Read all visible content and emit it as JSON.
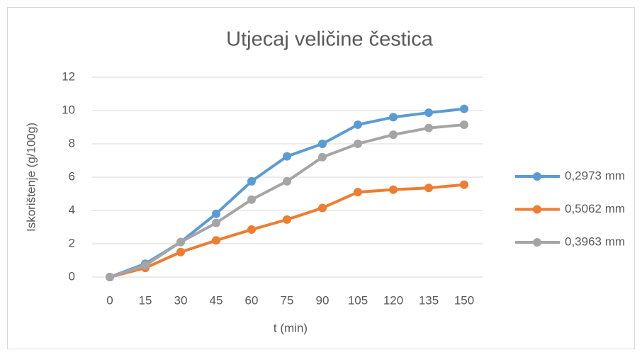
{
  "chart_data": {
    "type": "line",
    "title": "Utjecaj veličine čestica",
    "x_label": "t (min)",
    "y_label": "Iskorištenje (g/100g)",
    "x": [
      0,
      15,
      30,
      45,
      60,
      75,
      90,
      105,
      120,
      135,
      150
    ],
    "xlim": [
      0,
      150
    ],
    "xticks": [
      0,
      15,
      30,
      45,
      60,
      75,
      90,
      105,
      120,
      135,
      150
    ],
    "ylim": [
      0,
      12
    ],
    "yticks": [
      0,
      2,
      4,
      6,
      8,
      10,
      12
    ],
    "grid": "horizontal",
    "legend": "right",
    "series": [
      {
        "name": "0,2973 mm",
        "color": "#5b9bd5",
        "values": [
          0,
          0.8,
          2.1,
          3.8,
          5.75,
          7.25,
          8.0,
          9.15,
          9.6,
          9.87,
          10.1
        ]
      },
      {
        "name": "0,5062 mm",
        "color": "#ed7d31",
        "values": [
          0,
          0.55,
          1.5,
          2.2,
          2.85,
          3.45,
          4.15,
          5.1,
          5.25,
          5.35,
          5.55
        ]
      },
      {
        "name": "0,3963 mm",
        "color": "#a5a5a5",
        "values": [
          0,
          0.7,
          2.1,
          3.25,
          4.65,
          5.75,
          7.2,
          8.0,
          8.55,
          8.95,
          9.15
        ]
      }
    ]
  }
}
